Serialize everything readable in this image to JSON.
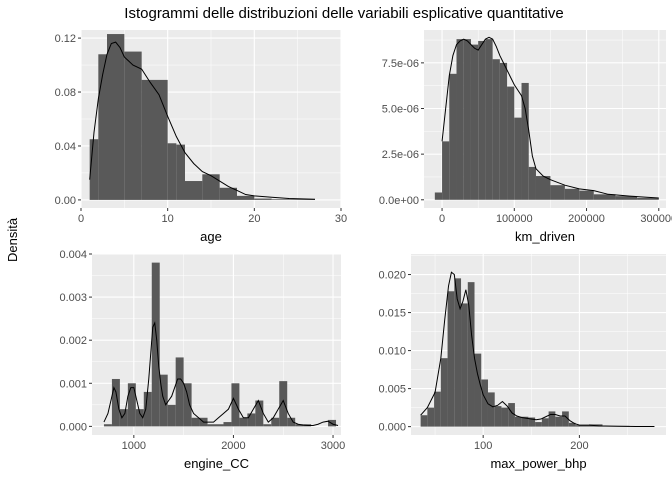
{
  "title": "Istogrammi delle distribuzioni delle variabili esplicative quantitative",
  "ylabel": "Densità",
  "colors": {
    "panel_bg": "#EBEBEB",
    "grid_major": "#FFFFFF",
    "bar_fill": "#595959",
    "density_line": "#000000",
    "tick_text": "#4D4D4D"
  },
  "chart_data": [
    {
      "type": "bar",
      "subtype": "histogram_with_density",
      "xlabel": "age",
      "xlim": [
        0,
        30
      ],
      "ylim": [
        -0.006,
        0.126
      ],
      "x_ticks": [
        0,
        10,
        20,
        30
      ],
      "x_tick_labels": [
        "0",
        "10",
        "20",
        "30"
      ],
      "y_ticks": [
        0,
        0.04,
        0.08,
        0.12
      ],
      "y_tick_labels": [
        "0.00",
        "0.04",
        "0.08",
        "0.12"
      ],
      "bins": [
        {
          "x0": 1,
          "x1": 2,
          "value": 0.045
        },
        {
          "x0": 2,
          "x1": 3,
          "value": 0.108
        },
        {
          "x0": 3,
          "x1": 5,
          "value": 0.123
        },
        {
          "x0": 5,
          "x1": 7,
          "value": 0.11
        },
        {
          "x0": 7,
          "x1": 10,
          "value": 0.089
        },
        {
          "x0": 10,
          "x1": 11,
          "value": 0.042
        },
        {
          "x0": 11,
          "x1": 12,
          "value": 0.041
        },
        {
          "x0": 12,
          "x1": 14,
          "value": 0.014
        },
        {
          "x0": 14,
          "x1": 16,
          "value": 0.019
        },
        {
          "x0": 16,
          "x1": 18,
          "value": 0.009
        },
        {
          "x0": 18,
          "x1": 20,
          "value": 0.003
        },
        {
          "x0": 20,
          "x1": 22,
          "value": 0.001
        },
        {
          "x0": 22,
          "x1": 27,
          "value": 0.0005
        }
      ],
      "density": {
        "x": [
          1,
          1.5,
          2,
          2.5,
          3,
          3.5,
          4,
          4.5,
          5,
          6,
          7,
          8,
          9,
          10,
          11,
          12,
          13,
          14,
          15,
          16,
          17,
          18,
          19,
          20,
          22,
          24,
          27
        ],
        "y": [
          0.015,
          0.05,
          0.075,
          0.093,
          0.108,
          0.116,
          0.117,
          0.113,
          0.106,
          0.1,
          0.097,
          0.087,
          0.078,
          0.062,
          0.047,
          0.035,
          0.027,
          0.021,
          0.018,
          0.014,
          0.01,
          0.007,
          0.004,
          0.003,
          0.002,
          0.001,
          0.0005
        ]
      }
    },
    {
      "type": "bar",
      "subtype": "histogram_with_density",
      "xlabel": "km_driven",
      "xlim": [
        -25000,
        310000
      ],
      "ylim": [
        -4.5e-07,
        9.3e-06
      ],
      "x_ticks": [
        0,
        100000,
        200000,
        300000
      ],
      "x_tick_labels": [
        "0",
        "100000",
        "200000",
        "300000"
      ],
      "y_ticks": [
        0,
        2.5e-06,
        5e-06,
        7.5e-06
      ],
      "y_tick_labels": [
        "0.0e+00",
        "2.5e-06",
        "5.0e-06",
        "7.5e-06"
      ],
      "bins": [
        {
          "x0": -10000,
          "x1": 0,
          "value": 4e-07
        },
        {
          "x0": 0,
          "x1": 10000,
          "value": 3.2e-06
        },
        {
          "x0": 10000,
          "x1": 20000,
          "value": 6.9e-06
        },
        {
          "x0": 20000,
          "x1": 30000,
          "value": 8.8e-06
        },
        {
          "x0": 30000,
          "x1": 40000,
          "value": 8.8e-06
        },
        {
          "x0": 40000,
          "x1": 50000,
          "value": 8.5e-06
        },
        {
          "x0": 50000,
          "x1": 60000,
          "value": 8.7e-06
        },
        {
          "x0": 60000,
          "x1": 70000,
          "value": 8.8e-06
        },
        {
          "x0": 70000,
          "x1": 80000,
          "value": 7.7e-06
        },
        {
          "x0": 80000,
          "x1": 90000,
          "value": 7.5e-06
        },
        {
          "x0": 90000,
          "x1": 100000,
          "value": 6.2e-06
        },
        {
          "x0": 100000,
          "x1": 110000,
          "value": 4.5e-06
        },
        {
          "x0": 110000,
          "x1": 120000,
          "value": 6.4e-06
        },
        {
          "x0": 120000,
          "x1": 130000,
          "value": 1.8e-06
        },
        {
          "x0": 130000,
          "x1": 150000,
          "value": 1.3e-06
        },
        {
          "x0": 150000,
          "x1": 170000,
          "value": 8e-07
        },
        {
          "x0": 170000,
          "x1": 190000,
          "value": 6e-07
        },
        {
          "x0": 190000,
          "x1": 210000,
          "value": 5e-07
        },
        {
          "x0": 210000,
          "x1": 240000,
          "value": 3e-07
        },
        {
          "x0": 240000,
          "x1": 270000,
          "value": 2e-07
        },
        {
          "x0": 270000,
          "x1": 300000,
          "value": 1e-07
        }
      ],
      "density": {
        "x": [
          0,
          5000,
          10000,
          15000,
          20000,
          25000,
          30000,
          35000,
          40000,
          45000,
          50000,
          55000,
          60000,
          65000,
          70000,
          75000,
          80000,
          85000,
          90000,
          95000,
          100000,
          105000,
          110000,
          115000,
          120000,
          125000,
          130000,
          140000,
          150000,
          170000,
          190000,
          210000,
          230000,
          260000,
          300000
        ],
        "y": [
          3.2e-06,
          5e-06,
          6.8e-06,
          7.9e-06,
          8.5e-06,
          8.7e-06,
          8.8e-06,
          8.7e-06,
          8.5e-06,
          8.3e-06,
          8.2e-06,
          8.5e-06,
          8.8e-06,
          8.9e-06,
          8.8e-06,
          8.4e-06,
          7.9e-06,
          7.5e-06,
          7.1e-06,
          6.7e-06,
          6.3e-06,
          6e-06,
          5.7e-06,
          5e-06,
          3.8e-06,
          2.4e-06,
          1.7e-06,
          1.3e-06,
          1.1e-06,
          8e-07,
          6e-07,
          5e-07,
          3e-07,
          2e-07,
          1e-07
        ]
      }
    },
    {
      "type": "bar",
      "subtype": "histogram_with_density",
      "xlabel": "engine_CC",
      "xlim": [
        580,
        3080
      ],
      "ylim": [
        -0.0002,
        0.004
      ],
      "x_ticks": [
        1000,
        2000,
        3000
      ],
      "x_tick_labels": [
        "1000",
        "2000",
        "3000"
      ],
      "y_ticks": [
        0,
        0.001,
        0.002,
        0.003,
        0.004
      ],
      "y_tick_labels": [
        "0.000",
        "0.001",
        "0.002",
        "0.003",
        "0.004"
      ],
      "bins": [
        {
          "x0": 700,
          "x1": 780,
          "value": 5e-05
        },
        {
          "x0": 780,
          "x1": 860,
          "value": 0.0011
        },
        {
          "x0": 860,
          "x1": 940,
          "value": 0.0004
        },
        {
          "x0": 940,
          "x1": 1020,
          "value": 0.001
        },
        {
          "x0": 1020,
          "x1": 1100,
          "value": 0.0004
        },
        {
          "x0": 1100,
          "x1": 1180,
          "value": 0.0008
        },
        {
          "x0": 1180,
          "x1": 1260,
          "value": 0.0038
        },
        {
          "x0": 1260,
          "x1": 1340,
          "value": 0.0012
        },
        {
          "x0": 1340,
          "x1": 1420,
          "value": 0.0005
        },
        {
          "x0": 1420,
          "x1": 1500,
          "value": 0.0016
        },
        {
          "x0": 1500,
          "x1": 1580,
          "value": 0.001
        },
        {
          "x0": 1580,
          "x1": 1660,
          "value": 0.0002
        },
        {
          "x0": 1660,
          "x1": 1740,
          "value": 0.0002
        },
        {
          "x0": 1740,
          "x1": 1820,
          "value": 5e-05
        },
        {
          "x0": 1820,
          "x1": 1900,
          "value": 5e-05
        },
        {
          "x0": 1900,
          "x1": 1980,
          "value": 0.0001
        },
        {
          "x0": 1980,
          "x1": 2060,
          "value": 0.001
        },
        {
          "x0": 2060,
          "x1": 2140,
          "value": 0.0002
        },
        {
          "x0": 2140,
          "x1": 2220,
          "value": 0.0003
        },
        {
          "x0": 2220,
          "x1": 2300,
          "value": 0.0006
        },
        {
          "x0": 2300,
          "x1": 2380,
          "value": 5e-05
        },
        {
          "x0": 2380,
          "x1": 2460,
          "value": 0.0002
        },
        {
          "x0": 2460,
          "x1": 2540,
          "value": 0.00105
        },
        {
          "x0": 2540,
          "x1": 2620,
          "value": 0.0002
        },
        {
          "x0": 2620,
          "x1": 2700,
          "value": 5e-05
        },
        {
          "x0": 2700,
          "x1": 2780,
          "value": 5e-05
        },
        {
          "x0": 2950,
          "x1": 3030,
          "value": 0.00015
        }
      ],
      "density": {
        "x": [
          700,
          740,
          780,
          800,
          820,
          850,
          880,
          910,
          940,
          970,
          1000,
          1030,
          1060,
          1090,
          1120,
          1150,
          1170,
          1190,
          1210,
          1230,
          1250,
          1270,
          1290,
          1320,
          1350,
          1380,
          1410,
          1440,
          1470,
          1500,
          1530,
          1560,
          1600,
          1650,
          1700,
          1750,
          1800,
          1850,
          1900,
          1950,
          2000,
          2050,
          2100,
          2150,
          2200,
          2250,
          2300,
          2350,
          2400,
          2450,
          2500,
          2550,
          2600,
          2650,
          2700,
          2750,
          2800,
          2850,
          2900,
          2950,
          3000,
          3050
        ],
        "y": [
          0.0001,
          0.0003,
          0.0007,
          0.0009,
          0.0008,
          0.0004,
          0.0002,
          0.0003,
          0.0007,
          0.0009,
          0.0009,
          0.0006,
          0.0003,
          0.0002,
          0.0004,
          0.0011,
          0.0017,
          0.0023,
          0.0024,
          0.002,
          0.0014,
          0.001,
          0.0007,
          0.0005,
          0.0006,
          0.0007,
          0.0009,
          0.0011,
          0.0011,
          0.001,
          0.0008,
          0.0005,
          0.0003,
          0.0002,
          0.0001,
          0.0001,
          0.0001,
          0.0002,
          0.0003,
          0.0004,
          0.00065,
          0.0004,
          0.0002,
          0.0002,
          0.0004,
          0.0006,
          0.0003,
          0.0001,
          0.0002,
          0.0004,
          0.0006,
          0.0003,
          0.0001,
          5e-05,
          3e-05,
          2e-05,
          2e-05,
          5e-05,
          0.0001,
          0.00012,
          5e-05,
          2e-05
        ]
      }
    },
    {
      "type": "bar",
      "subtype": "histogram_with_density",
      "xlabel": "max_power_bhp",
      "xlim": [
        25,
        290
      ],
      "ylim": [
        -0.0011,
        0.0227
      ],
      "x_ticks": [
        100,
        200
      ],
      "x_tick_labels": [
        "100",
        "200"
      ],
      "y_ticks": [
        0,
        0.005,
        0.01,
        0.015,
        0.02
      ],
      "y_tick_labels": [
        "0.000",
        "0.005",
        "0.010",
        "0.015",
        "0.020"
      ],
      "bins": [
        {
          "x0": 35,
          "x1": 42,
          "value": 0.0015
        },
        {
          "x0": 42,
          "x1": 49,
          "value": 0.0025
        },
        {
          "x0": 49,
          "x1": 56,
          "value": 0.0046
        },
        {
          "x0": 56,
          "x1": 63,
          "value": 0.009
        },
        {
          "x0": 63,
          "x1": 70,
          "value": 0.0178
        },
        {
          "x0": 70,
          "x1": 77,
          "value": 0.0195
        },
        {
          "x0": 77,
          "x1": 84,
          "value": 0.0162
        },
        {
          "x0": 84,
          "x1": 91,
          "value": 0.019
        },
        {
          "x0": 91,
          "x1": 98,
          "value": 0.0096
        },
        {
          "x0": 98,
          "x1": 105,
          "value": 0.0062
        },
        {
          "x0": 105,
          "x1": 112,
          "value": 0.0045
        },
        {
          "x0": 112,
          "x1": 119,
          "value": 0.0027
        },
        {
          "x0": 119,
          "x1": 126,
          "value": 0.0025
        },
        {
          "x0": 126,
          "x1": 133,
          "value": 0.0031
        },
        {
          "x0": 133,
          "x1": 140,
          "value": 0.0013
        },
        {
          "x0": 140,
          "x1": 147,
          "value": 0.0013
        },
        {
          "x0": 147,
          "x1": 154,
          "value": 0.0012
        },
        {
          "x0": 154,
          "x1": 161,
          "value": 0.0006
        },
        {
          "x0": 161,
          "x1": 168,
          "value": 0.0011
        },
        {
          "x0": 168,
          "x1": 175,
          "value": 0.002
        },
        {
          "x0": 175,
          "x1": 182,
          "value": 0.0013
        },
        {
          "x0": 182,
          "x1": 189,
          "value": 0.002
        },
        {
          "x0": 189,
          "x1": 196,
          "value": 0.0005
        },
        {
          "x0": 196,
          "x1": 210,
          "value": 0.0002
        },
        {
          "x0": 210,
          "x1": 224,
          "value": 0.0003
        },
        {
          "x0": 224,
          "x1": 252,
          "value": 0.0001
        }
      ],
      "density": {
        "x": [
          35,
          42,
          50,
          56,
          60,
          64,
          67,
          70,
          73,
          76,
          79,
          82,
          85,
          88,
          91,
          94,
          97,
          100,
          105,
          110,
          115,
          120,
          125,
          130,
          135,
          140,
          145,
          150,
          155,
          160,
          165,
          170,
          175,
          180,
          185,
          190,
          195,
          200,
          210,
          220,
          240,
          260,
          278
        ],
        "y": [
          0.0015,
          0.0025,
          0.0045,
          0.009,
          0.014,
          0.0185,
          0.0203,
          0.02,
          0.0168,
          0.0155,
          0.0165,
          0.018,
          0.016,
          0.012,
          0.009,
          0.007,
          0.0055,
          0.0042,
          0.003,
          0.0026,
          0.0028,
          0.0033,
          0.0027,
          0.0018,
          0.0014,
          0.0012,
          0.0011,
          0.001,
          0.0009,
          0.001,
          0.0013,
          0.0016,
          0.0016,
          0.0014,
          0.0014,
          0.0008,
          0.0004,
          0.0002,
          0.0002,
          0.0001,
          5e-05,
          2e-05,
          1e-05
        ]
      }
    }
  ]
}
